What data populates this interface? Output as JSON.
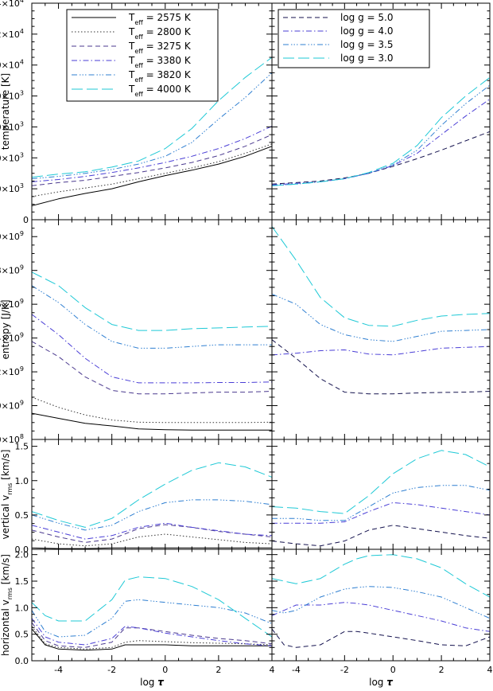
{
  "figure": {
    "xlabel_text": "log",
    "xlabel_symbol": "τ",
    "xticks": [
      -4,
      -2,
      0,
      2,
      4
    ],
    "xlim": [
      -5,
      4
    ]
  },
  "legends": {
    "teff": {
      "title_symbol": "T",
      "title_sub": "eff",
      "unit": "K",
      "entries": [
        {
          "value": "2575",
          "color": "#000000",
          "dash": "solid"
        },
        {
          "value": "2800",
          "color": "#333333",
          "dash": "dot"
        },
        {
          "value": "3275",
          "color": "#4b3a8f",
          "dash": "dash"
        },
        {
          "value": "3380",
          "color": "#4a3ed6",
          "dash": "dashdot"
        },
        {
          "value": "3820",
          "color": "#2f7fd1",
          "dash": "dashdotdotdot"
        },
        {
          "value": "4000",
          "color": "#1fc9d6",
          "dash": "longdash"
        }
      ]
    },
    "logg": {
      "prefix": "log g",
      "entries": [
        {
          "value": "5.0",
          "color": "#14124e",
          "dash": "dash"
        },
        {
          "value": "4.0",
          "color": "#4a3ed6",
          "dash": "dashdot"
        },
        {
          "value": "3.5",
          "color": "#2f7fd1",
          "dash": "dashdotdotdot"
        },
        {
          "value": "3.0",
          "color": "#1fc9d6",
          "dash": "longdash"
        }
      ]
    }
  },
  "chart_data": [
    {
      "type": "line",
      "row": "temperature",
      "ylabel": "temperature",
      "yunit": "[K]",
      "ylim": [
        0,
        14000
      ],
      "yticks": [
        {
          "v": 0,
          "m": "0",
          "e": ""
        },
        {
          "v": 2000,
          "m": "2.0×10",
          "e": "3"
        },
        {
          "v": 4000,
          "m": "4.0×10",
          "e": "3"
        },
        {
          "v": 6000,
          "m": "6.0×10",
          "e": "3"
        },
        {
          "v": 8000,
          "m": "8.0×10",
          "e": "3"
        },
        {
          "v": 10000,
          "m": "1.0×10",
          "e": "4"
        },
        {
          "v": 12000,
          "m": "1.2×10",
          "e": "4"
        },
        {
          "v": 14000,
          "m": "1.4×10",
          "e": "4"
        }
      ],
      "x": [
        -5,
        -4,
        -3,
        -2,
        -1,
        0,
        1,
        2,
        3,
        4
      ],
      "left_series": [
        {
          "key": "2575",
          "values": [
            900,
            1350,
            1700,
            2000,
            2450,
            2850,
            3200,
            3600,
            4100,
            4750
          ]
        },
        {
          "key": "2800",
          "values": [
            1500,
            1800,
            2050,
            2300,
            2650,
            3000,
            3350,
            3750,
            4300,
            4900
          ]
        },
        {
          "key": "3275",
          "values": [
            2200,
            2400,
            2550,
            2800,
            3050,
            3350,
            3700,
            4150,
            4750,
            5500
          ]
        },
        {
          "key": "3380",
          "values": [
            2450,
            2600,
            2800,
            3050,
            3350,
            3700,
            4100,
            4600,
            5250,
            6050
          ]
        },
        {
          "key": "3820",
          "values": [
            2650,
            2800,
            3000,
            3250,
            3600,
            4100,
            5000,
            6500,
            7900,
            9500
          ]
        },
        {
          "key": "4000",
          "values": [
            2750,
            2950,
            3100,
            3400,
            3800,
            4600,
            5900,
            7700,
            9200,
            10500
          ]
        }
      ],
      "right_series": [
        {
          "key": "5.0",
          "values": [
            2300,
            2400,
            2500,
            2700,
            3000,
            3450,
            3950,
            4500,
            5100,
            5700
          ]
        },
        {
          "key": "4.0",
          "values": [
            2250,
            2350,
            2450,
            2650,
            3000,
            3500,
            4300,
            5500,
            6700,
            7800
          ]
        },
        {
          "key": "3.5",
          "values": [
            2200,
            2300,
            2450,
            2650,
            3000,
            3550,
            4500,
            6100,
            7500,
            8700
          ]
        },
        {
          "key": "3.0",
          "values": [
            2200,
            2300,
            2450,
            2650,
            3050,
            3650,
            4800,
            6600,
            8000,
            9200
          ]
        }
      ]
    },
    {
      "type": "line",
      "row": "entropy",
      "ylabel": "entropy",
      "yunit": "[J/K]",
      "ylim": [
        800000000,
        2100000000
      ],
      "yticks": [
        {
          "v": 800000000,
          "m": "8.0×10",
          "e": "8"
        },
        {
          "v": 1000000000,
          "m": "1.0×10",
          "e": "9"
        },
        {
          "v": 1200000000,
          "m": "1.2×10",
          "e": "9"
        },
        {
          "v": 1400000000,
          "m": "1.4×10",
          "e": "9"
        },
        {
          "v": 1600000000,
          "m": "1.6×10",
          "e": "9"
        },
        {
          "v": 1800000000,
          "m": "1.8×10",
          "e": "9"
        },
        {
          "v": 2000000000,
          "m": "2.0×10",
          "e": "9"
        }
      ],
      "x": [
        -5,
        -4,
        -3,
        -2,
        -1,
        0,
        1,
        2,
        3,
        4
      ],
      "left_series": [
        {
          "key": "2575",
          "values": [
            955000000,
            925000000,
            895000000,
            880000000,
            862000000,
            858000000,
            855000000,
            855000000,
            855000000,
            855000000
          ]
        },
        {
          "key": "2800",
          "values": [
            1050000000,
            990000000,
            945000000,
            915000000,
            902000000,
            900000000,
            900000000,
            900000000,
            900000000,
            902000000
          ]
        },
        {
          "key": "3275",
          "values": [
            1380000000,
            1290000000,
            1170000000,
            1090000000,
            1070000000,
            1070000000,
            1075000000,
            1080000000,
            1080000000,
            1085000000
          ]
        },
        {
          "key": "3380",
          "values": [
            1540000000,
            1420000000,
            1280000000,
            1170000000,
            1135000000,
            1135000000,
            1135000000,
            1137000000,
            1137000000,
            1140000000
          ]
        },
        {
          "key": "3820",
          "values": [
            1710000000,
            1610000000,
            1480000000,
            1380000000,
            1340000000,
            1340000000,
            1350000000,
            1360000000,
            1360000000,
            1360000000
          ]
        },
        {
          "key": "4000",
          "values": [
            1790000000,
            1710000000,
            1580000000,
            1480000000,
            1445000000,
            1445000000,
            1455000000,
            1460000000,
            1465000000,
            1470000000
          ]
        }
      ],
      "right_series": [
        {
          "key": "5.0",
          "values": [
            1390000000,
            1280000000,
            1160000000,
            1080000000,
            1070000000,
            1070000000,
            1075000000,
            1078000000,
            1080000000,
            1085000000
          ]
        },
        {
          "key": "4.0",
          "values": [
            1300000000,
            1310000000,
            1325000000,
            1330000000,
            1305000000,
            1300000000,
            1320000000,
            1340000000,
            1345000000,
            1350000000
          ]
        },
        {
          "key": "3.5",
          "values": [
            1660000000,
            1600000000,
            1480000000,
            1420000000,
            1390000000,
            1380000000,
            1410000000,
            1440000000,
            1445000000,
            1450000000
          ]
        },
        {
          "key": "3.0",
          "values": [
            2060000000,
            1860000000,
            1640000000,
            1520000000,
            1475000000,
            1470000000,
            1505000000,
            1530000000,
            1540000000,
            1545000000
          ]
        }
      ]
    },
    {
      "type": "line",
      "row": "vertical",
      "ylabel": "vertical v",
      "ylabel_sub": "rms",
      "yunit": "[km/s]",
      "ylim": [
        0,
        1.6
      ],
      "yticks": [
        {
          "v": 0,
          "m": "0.0",
          "e": ""
        },
        {
          "v": 0.5,
          "m": "0.5",
          "e": ""
        },
        {
          "v": 1.0,
          "m": "1.0",
          "e": ""
        },
        {
          "v": 1.5,
          "m": "1.5",
          "e": ""
        }
      ],
      "x": [
        -5,
        -4,
        -3,
        -2,
        -1,
        0,
        1,
        2,
        3,
        4
      ],
      "left_series": [
        {
          "key": "2575",
          "values": [
            0.02,
            0.01,
            0.01,
            0.02,
            0.02,
            0.02,
            0.02,
            0.02,
            0.02,
            0.02
          ]
        },
        {
          "key": "2800",
          "values": [
            0.15,
            0.08,
            0.05,
            0.08,
            0.18,
            0.22,
            0.18,
            0.14,
            0.1,
            0.08
          ]
        },
        {
          "key": "3275",
          "values": [
            0.28,
            0.18,
            0.1,
            0.15,
            0.3,
            0.36,
            0.32,
            0.26,
            0.22,
            0.18
          ]
        },
        {
          "key": "3380",
          "values": [
            0.35,
            0.25,
            0.15,
            0.2,
            0.32,
            0.38,
            0.32,
            0.27,
            0.22,
            0.2
          ]
        },
        {
          "key": "3820",
          "values": [
            0.5,
            0.38,
            0.28,
            0.35,
            0.55,
            0.68,
            0.72,
            0.72,
            0.7,
            0.65
          ]
        },
        {
          "key": "4000",
          "values": [
            0.55,
            0.42,
            0.32,
            0.45,
            0.72,
            0.95,
            1.15,
            1.26,
            1.2,
            1.05
          ]
        }
      ],
      "right_series": [
        {
          "key": "5.0",
          "values": [
            0.12,
            0.08,
            0.05,
            0.12,
            0.28,
            0.35,
            0.3,
            0.25,
            0.2,
            0.16
          ]
        },
        {
          "key": "4.0",
          "values": [
            0.38,
            0.38,
            0.38,
            0.4,
            0.55,
            0.68,
            0.65,
            0.6,
            0.55,
            0.5
          ]
        },
        {
          "key": "3.5",
          "values": [
            0.45,
            0.45,
            0.42,
            0.42,
            0.62,
            0.82,
            0.9,
            0.93,
            0.93,
            0.86
          ]
        },
        {
          "key": "3.0",
          "values": [
            0.62,
            0.6,
            0.55,
            0.52,
            0.78,
            1.1,
            1.32,
            1.44,
            1.38,
            1.2
          ]
        }
      ]
    },
    {
      "type": "line",
      "row": "horizontal",
      "ylabel": "horizontal v",
      "ylabel_sub": "rms",
      "yunit": "[km/s]",
      "ylim": [
        0,
        2.1
      ],
      "yticks": [
        {
          "v": 0,
          "m": "0.0",
          "e": ""
        },
        {
          "v": 0.5,
          "m": "0.5",
          "e": ""
        },
        {
          "v": 1.0,
          "m": "1.0",
          "e": ""
        },
        {
          "v": 1.5,
          "m": "1.5",
          "e": ""
        },
        {
          "v": 2.0,
          "m": "2.0",
          "e": ""
        }
      ],
      "x": [
        -5,
        -4.5,
        -4,
        -3,
        -2,
        -1.5,
        -1,
        0,
        1,
        2,
        3,
        4
      ],
      "left_series": [
        {
          "key": "2575",
          "values": [
            0.6,
            0.3,
            0.22,
            0.2,
            0.22,
            0.3,
            0.3,
            0.3,
            0.28,
            0.28,
            0.28,
            0.28
          ]
        },
        {
          "key": "2800",
          "values": [
            0.65,
            0.32,
            0.25,
            0.22,
            0.25,
            0.35,
            0.38,
            0.36,
            0.34,
            0.33,
            0.32,
            0.3
          ]
        },
        {
          "key": "3275",
          "values": [
            0.72,
            0.38,
            0.28,
            0.25,
            0.35,
            0.62,
            0.62,
            0.55,
            0.48,
            0.42,
            0.38,
            0.32
          ]
        },
        {
          "key": "3380",
          "values": [
            0.8,
            0.45,
            0.35,
            0.3,
            0.42,
            0.65,
            0.62,
            0.52,
            0.45,
            0.38,
            0.32,
            0.28
          ]
        },
        {
          "key": "3820",
          "values": [
            0.95,
            0.55,
            0.45,
            0.48,
            0.8,
            1.12,
            1.15,
            1.1,
            1.05,
            1.0,
            0.9,
            0.7
          ]
        },
        {
          "key": "4000",
          "values": [
            1.1,
            0.85,
            0.75,
            0.75,
            1.15,
            1.52,
            1.58,
            1.55,
            1.4,
            1.15,
            0.8,
            0.45
          ]
        }
      ],
      "right_series": [
        {
          "key": "5.0",
          "values": [
            0.6,
            0.3,
            0.25,
            0.3,
            0.55,
            0.55,
            0.52,
            0.45,
            0.38,
            0.3,
            0.28,
            0.45
          ]
        },
        {
          "key": "4.0",
          "values": [
            0.85,
            0.95,
            1.05,
            1.05,
            1.1,
            1.08,
            1.05,
            0.95,
            0.85,
            0.75,
            0.62,
            0.55
          ]
        },
        {
          "key": "3.5",
          "values": [
            0.95,
            0.9,
            0.95,
            1.2,
            1.35,
            1.38,
            1.4,
            1.38,
            1.3,
            1.2,
            1.0,
            0.8
          ]
        },
        {
          "key": "3.0",
          "values": [
            1.55,
            1.5,
            1.45,
            1.55,
            1.82,
            1.92,
            1.98,
            2.0,
            1.92,
            1.75,
            1.45,
            1.2
          ]
        }
      ]
    }
  ]
}
